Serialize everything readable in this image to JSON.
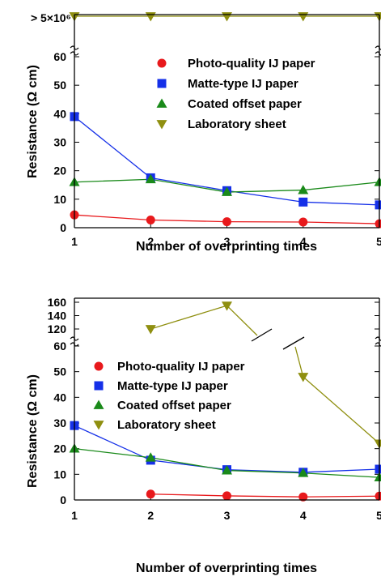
{
  "chart_data": [
    {
      "type": "line",
      "xlabel": "Number of overprinting times",
      "ylabel": "Resistance (Ω cm)",
      "x": [
        1,
        2,
        3,
        4,
        5
      ],
      "ylim": [
        0,
        62
      ],
      "break_label": "> 5×10⁶",
      "yticks": [
        0,
        10,
        20,
        30,
        40,
        50,
        60
      ],
      "legend_position": "top-right",
      "series": [
        {
          "name": "Photo-quality IJ paper",
          "color": "#e8191c",
          "marker": "circle",
          "values": [
            4.5,
            2.7,
            2.1,
            2.0,
            1.4
          ]
        },
        {
          "name": "Matte-type IJ paper",
          "color": "#1530e8",
          "marker": "square",
          "values": [
            39,
            17.5,
            13,
            9,
            8
          ]
        },
        {
          "name": "Coated offset paper",
          "color": "#1a8a1a",
          "marker": "triangle-up",
          "values": [
            16,
            17,
            12.5,
            13.2,
            16
          ]
        },
        {
          "name": "Laboratory sheet",
          "color": "#8f8f10",
          "marker": "triangle-down",
          "values": [
            ">5×10⁶",
            ">5×10⁶",
            ">5×10⁶",
            ">5×10⁶",
            ">5×10⁶"
          ]
        }
      ]
    },
    {
      "type": "line",
      "xlabel": "Number of overprinting times",
      "ylabel": "Resistance (Ω cm)",
      "x": [
        1,
        2,
        3,
        4,
        5
      ],
      "ylim": [
        0,
        160
      ],
      "yticks": [
        0,
        10,
        20,
        30,
        40,
        50,
        60,
        120,
        140,
        160
      ],
      "legend_position": "top-left",
      "series": [
        {
          "name": "Photo-quality IJ paper",
          "color": "#e8191c",
          "marker": "circle",
          "values": [
            null,
            2.3,
            1.6,
            1.2,
            1.5
          ]
        },
        {
          "name": "Matte-type IJ paper",
          "color": "#1530e8",
          "marker": "square",
          "values": [
            29,
            15.5,
            11.8,
            10.8,
            12
          ]
        },
        {
          "name": "Coated offset paper",
          "color": "#1a8a1a",
          "marker": "triangle-up",
          "values": [
            20,
            16.5,
            11.5,
            10.5,
            8.8
          ]
        },
        {
          "name": "Laboratory sheet",
          "color": "#8f8f10",
          "marker": "triangle-down",
          "values": [
            null,
            120,
            155,
            48,
            22
          ]
        }
      ]
    }
  ]
}
